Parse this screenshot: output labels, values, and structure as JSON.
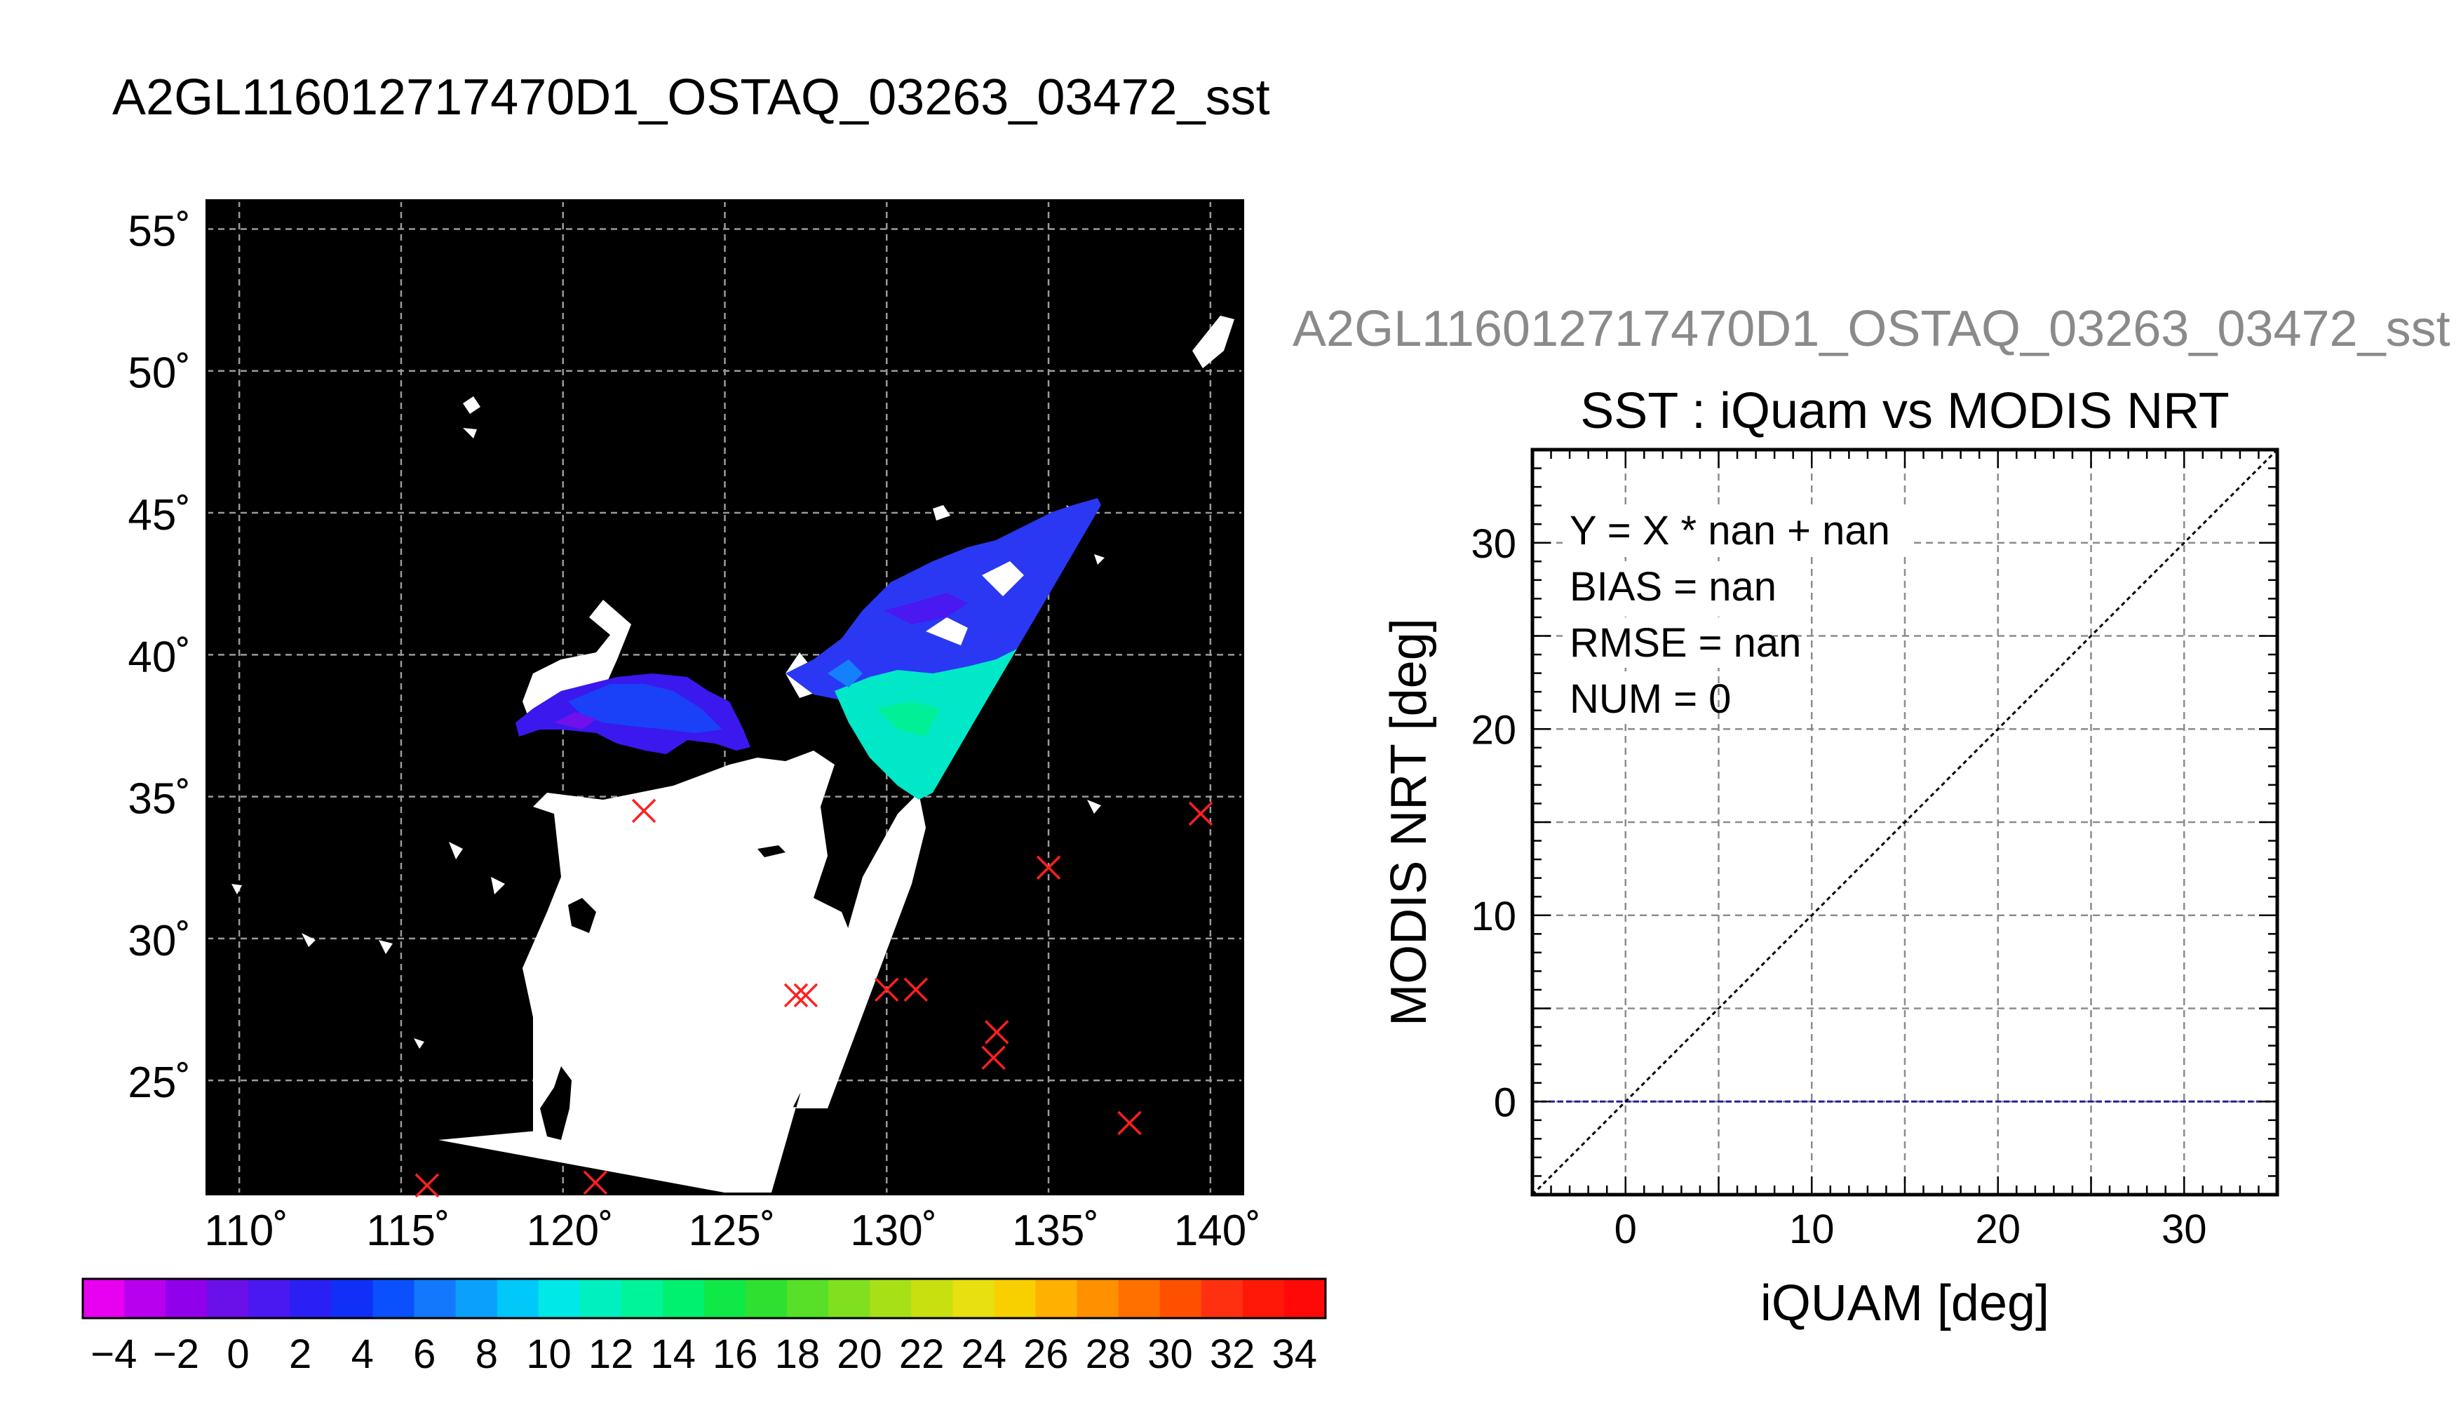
{
  "main_title": "A2GL116012717470D1_OSTAQ_03263_03472_sst",
  "map": {
    "lat_ticks": [
      "55˚",
      "50˚",
      "45˚",
      "40˚",
      "35˚",
      "30˚",
      "25˚"
    ],
    "lon_ticks": [
      "110˚",
      "115˚",
      "120˚",
      "125˚",
      "130˚",
      "135˚",
      "140˚"
    ],
    "lat_range": [
      21,
      56
    ],
    "lon_range": [
      109,
      141
    ],
    "marker_color": "#ff2020",
    "markers": [
      {
        "lon": 122.5,
        "lat": 34.5
      },
      {
        "lon": 127.2,
        "lat": 28.0
      },
      {
        "lon": 127.5,
        "lat": 28.0
      },
      {
        "lon": 130.0,
        "lat": 28.2
      },
      {
        "lon": 130.9,
        "lat": 28.2
      },
      {
        "lon": 133.4,
        "lat": 26.7
      },
      {
        "lon": 133.3,
        "lat": 25.8
      },
      {
        "lon": 135.0,
        "lat": 32.5
      },
      {
        "lon": 137.5,
        "lat": 23.5
      },
      {
        "lon": 139.7,
        "lat": 34.4
      },
      {
        "lon": 115.8,
        "lat": 21.3
      },
      {
        "lon": 121.0,
        "lat": 21.4
      }
    ]
  },
  "colorbar": {
    "labels": [
      "−4",
      "−2",
      "0",
      "2",
      "4",
      "6",
      "8",
      "10",
      "12",
      "14",
      "16",
      "18",
      "20",
      "22",
      "24",
      "26",
      "28",
      "30",
      "32",
      "34"
    ],
    "range": [
      -5,
      35
    ],
    "colors": [
      "#e800f0",
      "#b800ee",
      "#9000ea",
      "#6a10e8",
      "#4a18f0",
      "#2a20f4",
      "#1030f8",
      "#0a50fc",
      "#1478fc",
      "#0aa0fc",
      "#00c8f8",
      "#00e8e8",
      "#00f0c0",
      "#00f498",
      "#00f070",
      "#10e848",
      "#30e030",
      "#58e028",
      "#80e020",
      "#a8e018",
      "#c8e010",
      "#e8e010",
      "#f8d000",
      "#ffb000",
      "#ff9000",
      "#ff7000",
      "#ff5000",
      "#ff3010",
      "#ff1808",
      "#ff0808"
    ]
  },
  "scatter_title": "A2GL116012717470D1_OSTAQ_03263_03472_sst",
  "chart_data": {
    "type": "scatter",
    "title": "SST : iQuam vs MODIS NRT",
    "xlabel": "iQUAM [deg]",
    "ylabel": "MODIS NRT [deg]",
    "xlim": [
      -5,
      35
    ],
    "ylim": [
      -5,
      35
    ],
    "xticks": [
      0,
      10,
      20,
      30
    ],
    "yticks": [
      0,
      10,
      20,
      30
    ],
    "grid": true,
    "stats": [
      "Y = X * nan + nan",
      "BIAS = nan",
      "RMSE = nan",
      "NUM = 0"
    ],
    "points": [],
    "identity_line_color": "#000000",
    "zero_line_color": "#2020a0"
  }
}
